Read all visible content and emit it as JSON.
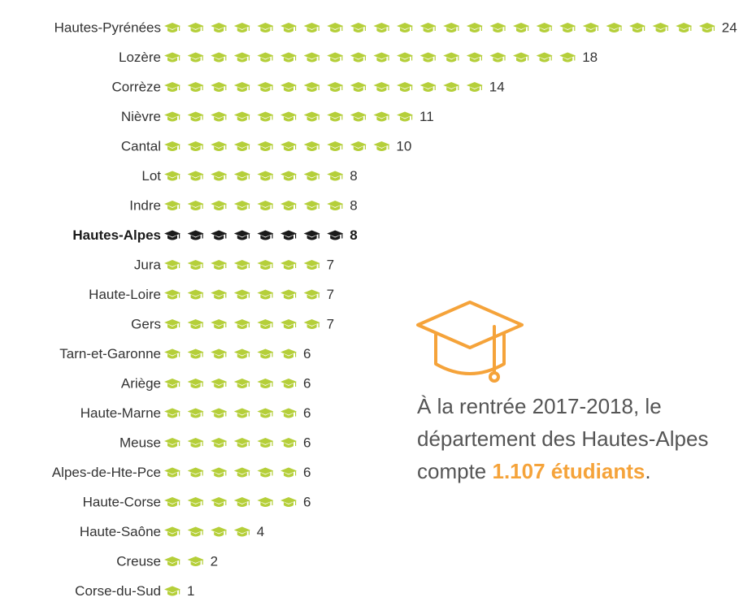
{
  "chart_data": {
    "type": "pictogram",
    "categories": [
      "Hautes-Pyrénées",
      "Lozère",
      "Corrèze",
      "Nièvre",
      "Cantal",
      "Lot",
      "Indre",
      "Hautes-Alpes",
      "Jura",
      "Haute-Loire",
      "Gers",
      "Tarn-et-Garonne",
      "Ariège",
      "Haute-Marne",
      "Meuse",
      "Alpes-de-Hte-Pce",
      "Haute-Corse",
      "Haute-Saône",
      "Creuse",
      "Corse-du-Sud"
    ],
    "values": [
      24,
      18,
      14,
      11,
      10,
      8,
      8,
      8,
      7,
      7,
      7,
      6,
      6,
      6,
      6,
      6,
      6,
      4,
      2,
      1
    ],
    "color": "#b5cf3a",
    "highlight": {
      "index": 7,
      "color": "#1a1a1a"
    },
    "annotation": {
      "parts": [
        "À la rentrée 2017-2018, le département des Hautes-Alpes compte",
        "1.107 étudiants",
        "."
      ],
      "color": "#f5a33a"
    }
  }
}
